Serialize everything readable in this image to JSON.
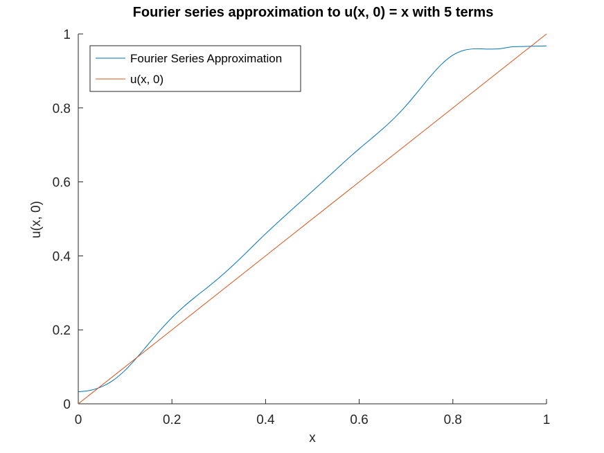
{
  "chart_data": {
    "type": "line",
    "title": "Fourier series approximation to u(x, 0) = x with 5 terms",
    "xlabel": "x",
    "ylabel": "u(x, 0)",
    "xlim": [
      0,
      1
    ],
    "ylim": [
      0,
      1
    ],
    "xticks": [
      "0",
      "0.2",
      "0.4",
      "0.6",
      "0.8",
      "1"
    ],
    "yticks": [
      "0",
      "0.2",
      "0.4",
      "0.6",
      "0.8",
      "1"
    ],
    "grid": false,
    "legend_position": "top-left",
    "series": [
      {
        "name": "Fourier Series Approximation",
        "color": "#0072BD",
        "x": [
          0,
          0.025,
          0.05,
          0.075,
          0.1,
          0.125,
          0.15,
          0.175,
          0.2,
          0.225,
          0.25,
          0.275,
          0.3,
          0.325,
          0.35,
          0.375,
          0.4,
          0.425,
          0.45,
          0.475,
          0.5,
          0.525,
          0.55,
          0.575,
          0.6,
          0.625,
          0.65,
          0.675,
          0.7,
          0.725,
          0.75,
          0.775,
          0.8,
          0.825,
          0.85,
          0.875,
          0.9,
          0.925,
          0.95,
          0.975,
          1.0
        ],
        "y": [
          0.0324,
          0.0362,
          0.0462,
          0.064,
          0.0907,
          0.1248,
          0.162,
          0.1991,
          0.2329,
          0.2625,
          0.2889,
          0.3139,
          0.3399,
          0.368,
          0.398,
          0.429,
          0.4597,
          0.4893,
          0.5181,
          0.5464,
          0.575,
          0.6038,
          0.6328,
          0.6618,
          0.6895,
          0.7161,
          0.7431,
          0.7726,
          0.8061,
          0.8437,
          0.8823,
          0.917,
          0.9427,
          0.9562,
          0.9599,
          0.959,
          0.96,
          0.965,
          0.966,
          0.967,
          0.9676
        ]
      },
      {
        "name": "u(x, 0)",
        "color": "#D95319",
        "x": [
          0,
          1
        ],
        "y": [
          0,
          1
        ]
      }
    ]
  }
}
